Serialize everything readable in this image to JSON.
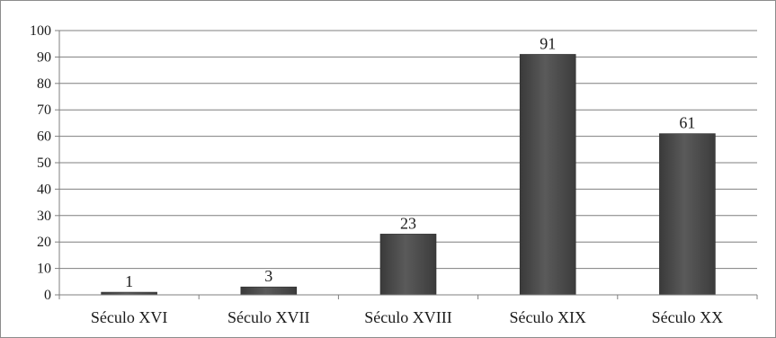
{
  "chart_data": {
    "type": "bar",
    "categories": [
      "Século XVI",
      "Século XVII",
      "Século XVIII",
      "Século XIX",
      "Século XX"
    ],
    "series": [
      {
        "values": [
          1,
          3,
          23,
          91,
          61
        ]
      }
    ],
    "data_labels": [
      "1",
      "3",
      "23",
      "91",
      "61"
    ],
    "title": "",
    "xlabel": "",
    "ylabel": "",
    "ylim": [
      0,
      100
    ],
    "yticks": [
      0,
      10,
      20,
      30,
      40,
      50,
      60,
      70,
      80,
      90,
      100
    ],
    "ytick_labels": [
      "0",
      "10",
      "20",
      "30",
      "40",
      "50",
      "60",
      "70",
      "80",
      "90",
      "100"
    ],
    "grid": true,
    "legend": "none",
    "bar_color": "#4a4a4a"
  }
}
